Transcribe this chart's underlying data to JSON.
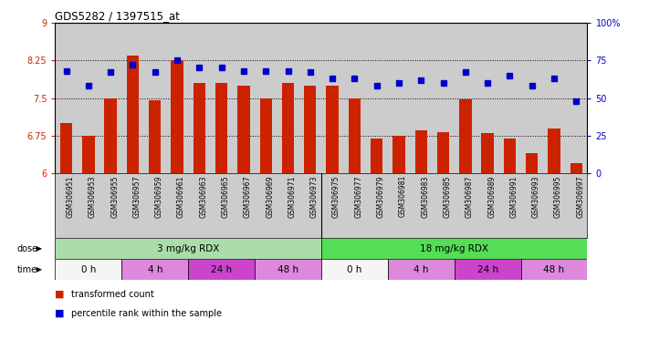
{
  "title": "GDS5282 / 1397515_at",
  "samples": [
    "GSM306951",
    "GSM306953",
    "GSM306955",
    "GSM306957",
    "GSM306959",
    "GSM306961",
    "GSM306963",
    "GSM306965",
    "GSM306967",
    "GSM306969",
    "GSM306971",
    "GSM306973",
    "GSM306975",
    "GSM306977",
    "GSM306979",
    "GSM306981",
    "GSM306983",
    "GSM306985",
    "GSM306987",
    "GSM306989",
    "GSM306991",
    "GSM306993",
    "GSM306995",
    "GSM306997"
  ],
  "bar_values": [
    7.0,
    6.75,
    7.5,
    8.35,
    7.45,
    8.25,
    7.8,
    7.8,
    7.75,
    7.5,
    7.8,
    7.75,
    7.75,
    7.5,
    6.7,
    6.75,
    6.85,
    6.82,
    7.47,
    6.8,
    6.7,
    6.4,
    6.9,
    6.2
  ],
  "percentile_values": [
    68,
    58,
    67,
    72,
    67,
    75,
    70,
    70,
    68,
    68,
    68,
    67,
    63,
    63,
    58,
    60,
    62,
    60,
    67,
    60,
    65,
    58,
    63,
    48
  ],
  "bar_color": "#cc2200",
  "percentile_color": "#0000cc",
  "ylim_left": [
    6,
    9
  ],
  "ylim_right": [
    0,
    100
  ],
  "yticks_left": [
    6,
    6.75,
    7.5,
    8.25,
    9
  ],
  "ytick_labels_left": [
    "6",
    "6.75",
    "7.5",
    "8.25",
    "9"
  ],
  "yticks_right": [
    0,
    25,
    50,
    75,
    100
  ],
  "ytick_labels_right": [
    "0",
    "25",
    "50",
    "75",
    "100%"
  ],
  "hlines": [
    6.75,
    7.5,
    8.25
  ],
  "dose_groups": [
    {
      "label": "3 mg/kg RDX",
      "start": 0,
      "end": 12,
      "color": "#aaddaa"
    },
    {
      "label": "18 mg/kg RDX",
      "start": 12,
      "end": 24,
      "color": "#55dd55"
    }
  ],
  "time_groups": [
    {
      "label": "0 h",
      "start": 0,
      "end": 3,
      "color": "#f5f5f5"
    },
    {
      "label": "4 h",
      "start": 3,
      "end": 6,
      "color": "#dd88dd"
    },
    {
      "label": "24 h",
      "start": 6,
      "end": 9,
      "color": "#cc44cc"
    },
    {
      "label": "48 h",
      "start": 9,
      "end": 12,
      "color": "#dd88dd"
    },
    {
      "label": "0 h",
      "start": 12,
      "end": 15,
      "color": "#f5f5f5"
    },
    {
      "label": "4 h",
      "start": 15,
      "end": 18,
      "color": "#dd88dd"
    },
    {
      "label": "24 h",
      "start": 18,
      "end": 21,
      "color": "#cc44cc"
    },
    {
      "label": "48 h",
      "start": 21,
      "end": 24,
      "color": "#dd88dd"
    }
  ],
  "legend_items": [
    {
      "label": "transformed count",
      "color": "#cc2200"
    },
    {
      "label": "percentile rank within the sample",
      "color": "#0000cc"
    }
  ],
  "dose_label": "dose",
  "time_label": "time",
  "plot_bg": "#cccccc",
  "tick_area_bg": "#cccccc"
}
